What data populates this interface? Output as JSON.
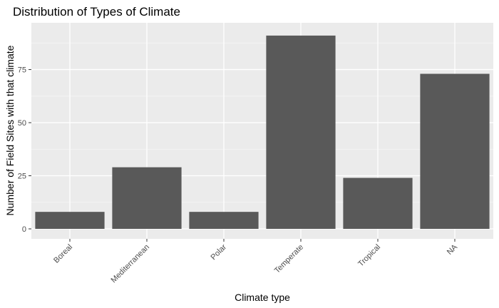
{
  "chart_data": {
    "type": "bar",
    "title": "Distribution of Types of Climate",
    "xlabel": "Climate type",
    "ylabel": "Number of Field Sites with that climate",
    "categories": [
      "Boreal",
      "Mediterranean",
      "Polar",
      "Temperate",
      "Tropical",
      "NA"
    ],
    "values": [
      8,
      29,
      8,
      91,
      24,
      73
    ],
    "ylim": [
      0,
      96
    ],
    "yticks": [
      "0",
      "25",
      "50",
      "75"
    ],
    "grid": true,
    "colors": {
      "bar": "#595959",
      "panel": "#ebebeb",
      "grid_major": "#ffffff",
      "grid_minor": "#f5f5f5"
    }
  }
}
